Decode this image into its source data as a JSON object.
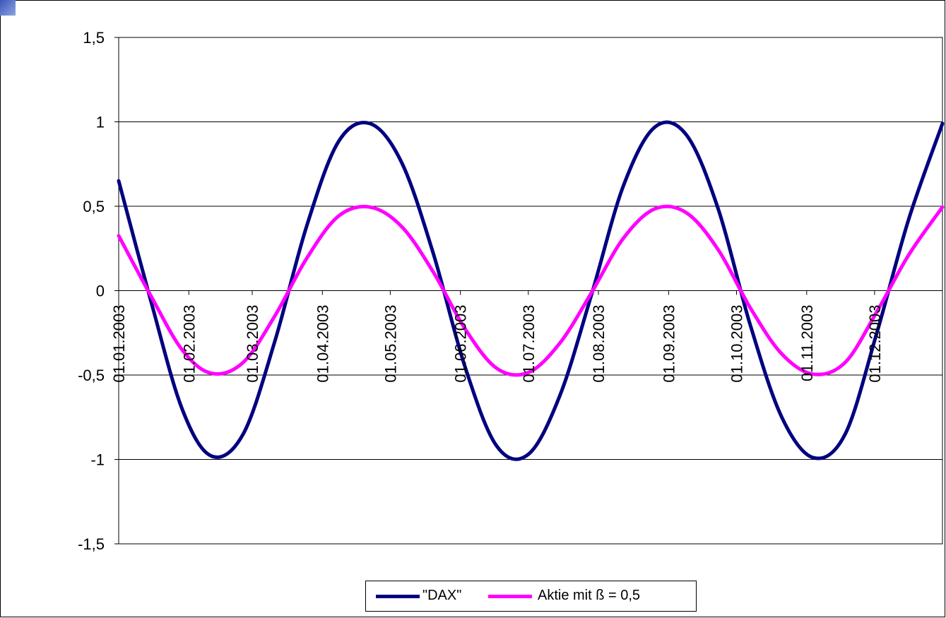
{
  "chart_data": {
    "type": "line",
    "title": "",
    "xlabel": "",
    "ylabel": "",
    "ylim": [
      -1.5,
      1.5
    ],
    "y_ticks": [
      1.5,
      1,
      0.5,
      0,
      -0.5,
      -1,
      -1.5
    ],
    "y_tick_labels": [
      "1,5",
      "1",
      "0,5",
      "0",
      "-0,5",
      "-1",
      "-1,5"
    ],
    "x_range": [
      "01.01.2003",
      "31.12.2003"
    ],
    "x_tick_labels": [
      "01.01.2003",
      "01.02.2003",
      "01.03.2003",
      "01.04.2003",
      "01.05.2003",
      "01.06.2003",
      "01.07.2003",
      "01.08.2003",
      "01.09.2003",
      "01.10.2003",
      "01.11.2003",
      "01.12.2003"
    ],
    "grid": "horizontal major gridlines",
    "legend_position": "bottom",
    "series": [
      {
        "name": "\"DAX\"",
        "color": "#000080",
        "x": [
          "01.01.2003",
          "15.01.2003",
          "29.01.2003",
          "11.02.2003",
          "25.02.2003",
          "11.03.2003",
          "25.03.2003",
          "08.04.2003",
          "22.04.2003",
          "06.05.2003",
          "20.05.2003",
          "03.06.2003",
          "17.06.2003",
          "01.07.2003",
          "15.07.2003",
          "29.07.2003",
          "12.08.2003",
          "26.08.2003",
          "09.09.2003",
          "23.09.2003",
          "07.10.2003",
          "21.10.2003",
          "04.11.2003",
          "18.11.2003",
          "02.12.2003",
          "16.12.2003",
          "31.12.2003"
        ],
        "values": [
          0.65,
          -0.05,
          -0.7,
          -0.98,
          -0.85,
          -0.3,
          0.38,
          0.88,
          0.99,
          0.76,
          0.22,
          -0.45,
          -0.92,
          -0.97,
          -0.62,
          -0.02,
          0.62,
          0.97,
          0.92,
          0.48,
          -0.2,
          -0.75,
          -0.99,
          -0.85,
          -0.25,
          0.42,
          0.99
        ]
      },
      {
        "name": "Aktie mit ß = 0,5",
        "color": "#ff00ff",
        "x": [
          "01.01.2003",
          "15.01.2003",
          "29.01.2003",
          "11.02.2003",
          "25.02.2003",
          "11.03.2003",
          "25.03.2003",
          "08.04.2003",
          "22.04.2003",
          "06.05.2003",
          "20.05.2003",
          "03.06.2003",
          "17.06.2003",
          "01.07.2003",
          "15.07.2003",
          "29.07.2003",
          "12.08.2003",
          "26.08.2003",
          "09.09.2003",
          "23.09.2003",
          "07.10.2003",
          "21.10.2003",
          "04.11.2003",
          "18.11.2003",
          "02.12.2003",
          "16.12.2003",
          "31.12.2003"
        ],
        "values": [
          0.325,
          -0.025,
          -0.35,
          -0.49,
          -0.425,
          -0.15,
          0.19,
          0.44,
          0.495,
          0.38,
          0.11,
          -0.225,
          -0.46,
          -0.485,
          -0.31,
          -0.01,
          0.31,
          0.485,
          0.46,
          0.24,
          -0.1,
          -0.375,
          -0.495,
          -0.425,
          -0.125,
          0.21,
          0.495
        ]
      }
    ]
  },
  "legend": {
    "dax_label": "\"DAX\"",
    "beta_label": "Aktie mit ß = 0,5"
  }
}
